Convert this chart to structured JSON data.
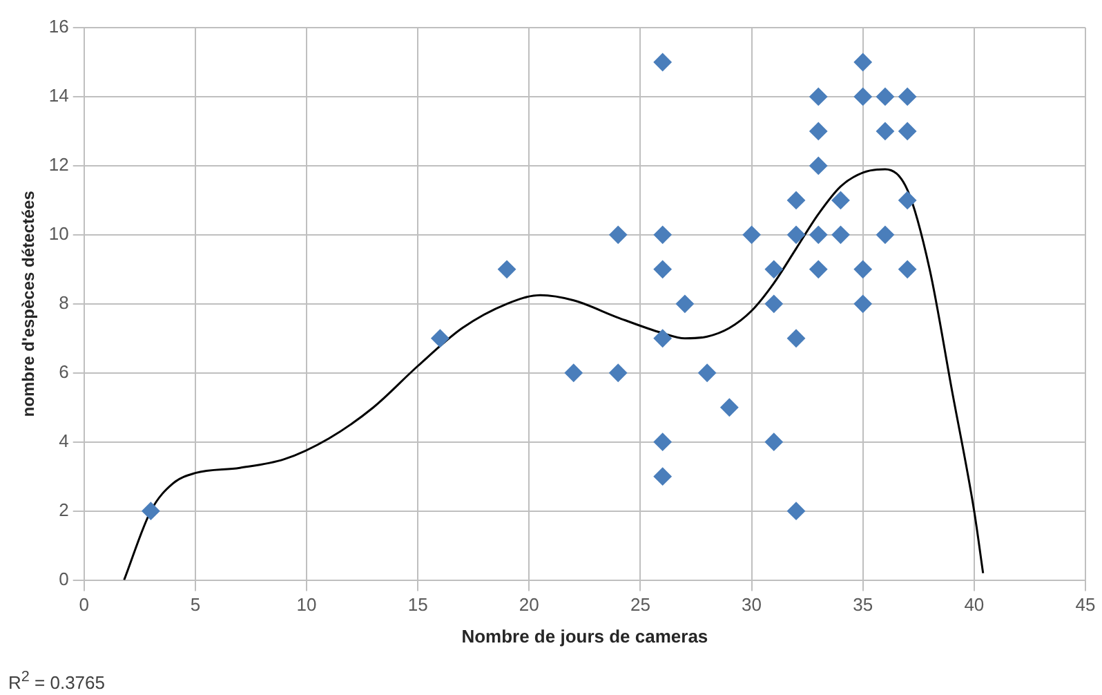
{
  "chart_data": {
    "type": "scatter",
    "xlabel": "Nombre de jours de cameras",
    "ylabel": "nombre d'espèces détectées",
    "annotations": [
      "R$^{2}$ = 0.3765"
    ],
    "series": [
      {
        "type": "scatter",
        "color": "#4a7ebb",
        "marker": "diamond",
        "x": [
          3,
          16,
          19,
          22,
          24,
          24,
          26,
          26,
          26,
          26,
          26,
          26,
          27,
          28,
          29,
          30,
          31,
          31,
          31,
          32,
          32,
          32,
          32,
          33,
          33,
          33,
          33,
          33,
          34,
          34,
          35,
          35,
          35,
          35,
          36,
          36,
          36,
          37,
          37,
          37,
          37
        ],
        "values": [
          2,
          7,
          9,
          6,
          10,
          6,
          15,
          10,
          9,
          7,
          4,
          3,
          8,
          6,
          5,
          10,
          9,
          8,
          4,
          11,
          10,
          7,
          2,
          14,
          13,
          12,
          10,
          9,
          11,
          10,
          15,
          14,
          9,
          8,
          14,
          13,
          10,
          14,
          13,
          11,
          9
        ]
      },
      {
        "type": "line",
        "color": "#000000",
        "marker": "none",
        "line_style": "solid",
        "x": [
          1.8,
          3,
          4,
          5,
          7,
          9,
          11,
          13,
          15,
          17,
          19,
          20.5,
          22,
          24,
          26,
          27,
          28,
          29,
          30,
          31,
          32,
          33,
          34,
          35,
          36,
          37,
          38,
          39,
          40,
          40.4
        ],
        "values": [
          0,
          2,
          2.8,
          3.1,
          3.25,
          3.5,
          4.1,
          5,
          6.2,
          7.3,
          8,
          8.25,
          8.1,
          7.6,
          7.15,
          7,
          7.05,
          7.3,
          7.8,
          8.6,
          9.6,
          10.6,
          11.4,
          11.8,
          11.9,
          11.3,
          9,
          5.5,
          2,
          0.2
        ]
      }
    ],
    "xlim": [
      0,
      45
    ],
    "xticks": [
      0,
      5,
      10,
      15,
      20,
      25,
      30,
      35,
      40,
      45
    ],
    "ylim": [
      0,
      16
    ],
    "yticks": [
      0,
      2,
      4,
      6,
      8,
      10,
      12,
      14,
      16
    ],
    "grid": true,
    "legend": false
  }
}
